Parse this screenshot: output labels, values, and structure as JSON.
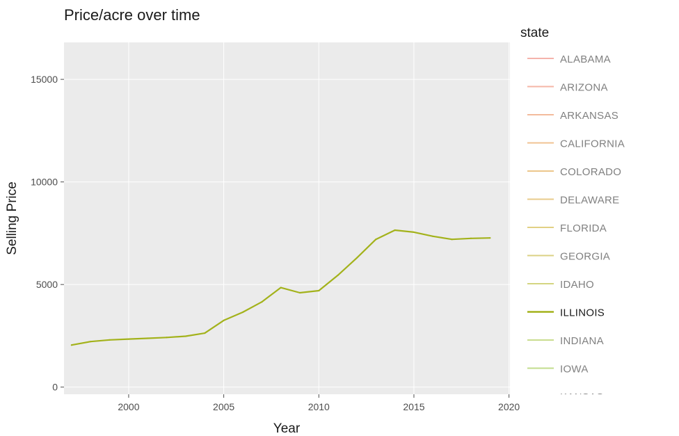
{
  "chart_data": {
    "type": "line",
    "title": "Price/acre over time",
    "xlabel": "Year",
    "ylabel": "Selling Price",
    "xlim": [
      1996.6,
      2020.05
    ],
    "ylim": [
      -350,
      16800
    ],
    "x_ticks": [
      2000,
      2005,
      2010,
      2015,
      2020
    ],
    "y_ticks": [
      0,
      5000,
      10000,
      15000
    ],
    "grid": true,
    "background": "#ebebeb",
    "legend": {
      "title": "state",
      "placement": "right",
      "highlighted": "ILLINOIS",
      "entries": [
        {
          "label": "ALABAMA",
          "color": "#f5b3ab"
        },
        {
          "label": "ARIZONA",
          "color": "#f5b6a6"
        },
        {
          "label": "ARKANSAS",
          "color": "#f3bb9c"
        },
        {
          "label": "CALIFORNIA",
          "color": "#f0c393"
        },
        {
          "label": "COLORADO",
          "color": "#ecc68b"
        },
        {
          "label": "DELAWARE",
          "color": "#e8cb8b"
        },
        {
          "label": "FLORIDA",
          "color": "#e1d084"
        },
        {
          "label": "GEORGIA",
          "color": "#dbd184"
        },
        {
          "label": "IDAHO",
          "color": "#d4d581"
        },
        {
          "label": "ILLINOIS",
          "color": "#a3b21b"
        },
        {
          "label": "INDIANA",
          "color": "#c9dc8e"
        },
        {
          "label": "IOWA",
          "color": "#c2dc8c"
        },
        {
          "label": "KANSAS",
          "color": "#bfdc8f"
        }
      ]
    },
    "series": [
      {
        "name": "ILLINOIS",
        "color": "#a3b21b",
        "x": [
          1997,
          1998,
          1999,
          2000,
          2001,
          2002,
          2003,
          2004,
          2005,
          2006,
          2007,
          2008,
          2009,
          2010,
          2011,
          2012,
          2013,
          2014,
          2015,
          2016,
          2017,
          2018,
          2019
        ],
        "values": [
          2050,
          2220,
          2300,
          2340,
          2380,
          2420,
          2480,
          2630,
          3250,
          3650,
          4150,
          4850,
          4600,
          4700,
          5450,
          6300,
          7200,
          7650,
          7550,
          7350,
          7200,
          7250,
          7270
        ]
      }
    ]
  }
}
